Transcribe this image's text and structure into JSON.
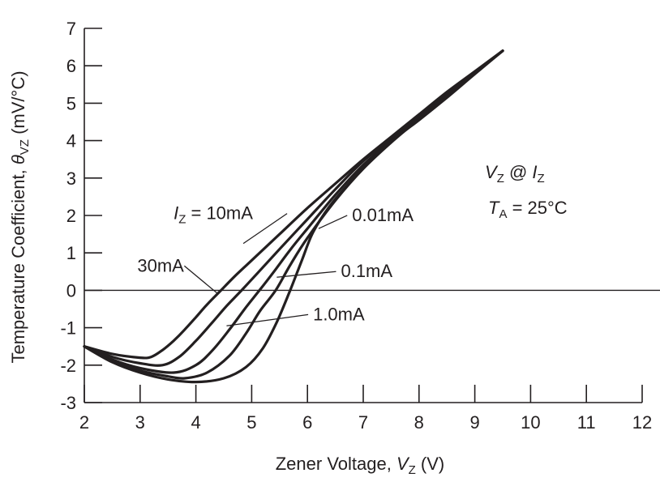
{
  "chart_data": {
    "type": "line",
    "title": "",
    "xlabel": "Zener Voltage, V_Z (V)",
    "xlabel_parts": {
      "pre": "Zener Voltage, ",
      "var": "V",
      "sub": "Z",
      "post": " (V)"
    },
    "ylabel": "Temperature Coefficient, θ_VZ (mV/°C)",
    "ylabel_parts": {
      "pre": "Temperature Coefficient, ",
      "var": "θ",
      "sub": "VZ",
      "post": " (mV/°C)"
    },
    "xlim": [
      2,
      12
    ],
    "ylim": [
      -3,
      7
    ],
    "x_ticks": [
      2,
      3,
      4,
      5,
      6,
      7,
      8,
      9,
      10,
      11,
      12
    ],
    "x_tick_labels": [
      "2",
      "3",
      "4",
      "5",
      "6",
      "7",
      "8",
      "9",
      "10",
      "11",
      "12"
    ],
    "y_ticks": [
      7,
      6,
      5,
      4,
      3,
      2,
      1,
      0,
      -1,
      -2,
      -3
    ],
    "y_tick_labels": [
      "7",
      "6",
      "5",
      "4",
      "3",
      "2",
      "1",
      "0",
      "-1",
      "-2",
      "-3"
    ],
    "grid": false,
    "zero_reference_line": true,
    "annotations": {
      "condition_line1": {
        "var": "V",
        "sub": "Z",
        "mid": " @ ",
        "var2": "I",
        "sub2": "Z"
      },
      "condition_line2": {
        "var": "T",
        "sub": "A",
        "post": " = 25°C"
      }
    },
    "series": [
      {
        "name": "I_Z = 30mA",
        "label": "30mA",
        "x": [
          2.0,
          2.5,
          3.0,
          3.2,
          3.4,
          3.6,
          3.8,
          4.0,
          4.2,
          4.45,
          4.7,
          5.0,
          5.5,
          6.0,
          6.5,
          7.0,
          7.5,
          8.0,
          8.5,
          9.0,
          9.5
        ],
        "y": [
          -1.5,
          -1.7,
          -1.8,
          -1.78,
          -1.6,
          -1.35,
          -1.05,
          -0.72,
          -0.38,
          0.0,
          0.38,
          0.8,
          1.5,
          2.2,
          2.85,
          3.5,
          4.1,
          4.7,
          5.3,
          5.85,
          6.4
        ]
      },
      {
        "name": "I_Z = 10mA",
        "label": "I_Z = 10mA",
        "x": [
          2.0,
          2.5,
          3.0,
          3.4,
          3.7,
          4.0,
          4.3,
          4.55,
          4.82,
          5.1,
          5.5,
          6.0,
          6.5,
          7.0,
          7.5,
          8.0,
          8.5,
          9.0,
          9.5
        ],
        "y": [
          -1.5,
          -1.78,
          -1.95,
          -2.0,
          -1.78,
          -1.35,
          -0.85,
          -0.42,
          0.0,
          0.45,
          1.1,
          1.9,
          2.7,
          3.45,
          4.05,
          4.65,
          5.25,
          5.82,
          6.4
        ]
      },
      {
        "name": "I_Z = 1.0mA",
        "label": "1.0mA",
        "x": [
          2.0,
          2.5,
          3.0,
          3.6,
          4.0,
          4.3,
          4.6,
          4.9,
          5.14,
          5.4,
          5.7,
          6.0,
          6.5,
          7.0,
          7.5,
          8.0,
          8.5,
          9.0,
          9.5
        ],
        "y": [
          -1.5,
          -1.85,
          -2.08,
          -2.2,
          -2.0,
          -1.6,
          -1.05,
          -0.45,
          0.0,
          0.5,
          1.1,
          1.65,
          2.55,
          3.35,
          4.0,
          4.62,
          5.22,
          5.8,
          6.4
        ]
      },
      {
        "name": "I_Z = 0.1mA",
        "label": "0.1mA",
        "x": [
          2.0,
          2.5,
          3.0,
          3.5,
          3.8,
          4.2,
          4.6,
          4.9,
          5.15,
          5.43,
          5.7,
          6.0,
          6.5,
          7.0,
          7.5,
          8.0,
          8.5,
          9.0,
          9.5
        ],
        "y": [
          -1.5,
          -1.9,
          -2.15,
          -2.3,
          -2.35,
          -2.2,
          -1.75,
          -1.15,
          -0.55,
          0.0,
          0.7,
          1.4,
          2.4,
          3.25,
          3.95,
          4.58,
          5.2,
          5.8,
          6.4
        ]
      },
      {
        "name": "I_Z = 0.01mA",
        "label": "0.01mA",
        "x": [
          2.0,
          2.5,
          3.0,
          3.5,
          4.0,
          4.5,
          4.9,
          5.2,
          5.45,
          5.69,
          5.9,
          6.1,
          6.4,
          6.8,
          7.2,
          7.6,
          8.0,
          8.5,
          9.0,
          9.5
        ],
        "y": [
          -1.5,
          -1.92,
          -2.2,
          -2.38,
          -2.45,
          -2.35,
          -2.05,
          -1.55,
          -0.85,
          0.0,
          0.8,
          1.55,
          2.25,
          2.95,
          3.6,
          4.1,
          4.55,
          5.15,
          5.78,
          6.4
        ]
      }
    ],
    "series_labels": [
      {
        "text_parts": {
          "var": "I",
          "sub": "Z",
          "post": " = 10mA"
        },
        "series": "I_Z = 10mA",
        "anchor": [
          3.6,
          1.9
        ],
        "target": [
          4.85,
          1.25
        ]
      },
      {
        "text": "30mA",
        "series": "I_Z = 30mA",
        "anchor": [
          2.95,
          0.5
        ],
        "target": [
          4.4,
          -0.1
        ]
      },
      {
        "text": "0.01mA",
        "series": "I_Z = 0.01mA",
        "anchor": [
          6.8,
          1.85
        ],
        "target": [
          6.2,
          1.65
        ]
      },
      {
        "text": "0.1mA",
        "series": "I_Z = 0.1mA",
        "anchor": [
          6.6,
          0.35
        ],
        "target": [
          5.45,
          0.35
        ]
      },
      {
        "text": "1.0mA",
        "series": "I_Z = 1.0mA",
        "anchor": [
          6.1,
          -0.8
        ],
        "target": [
          4.55,
          -0.95
        ]
      }
    ]
  }
}
